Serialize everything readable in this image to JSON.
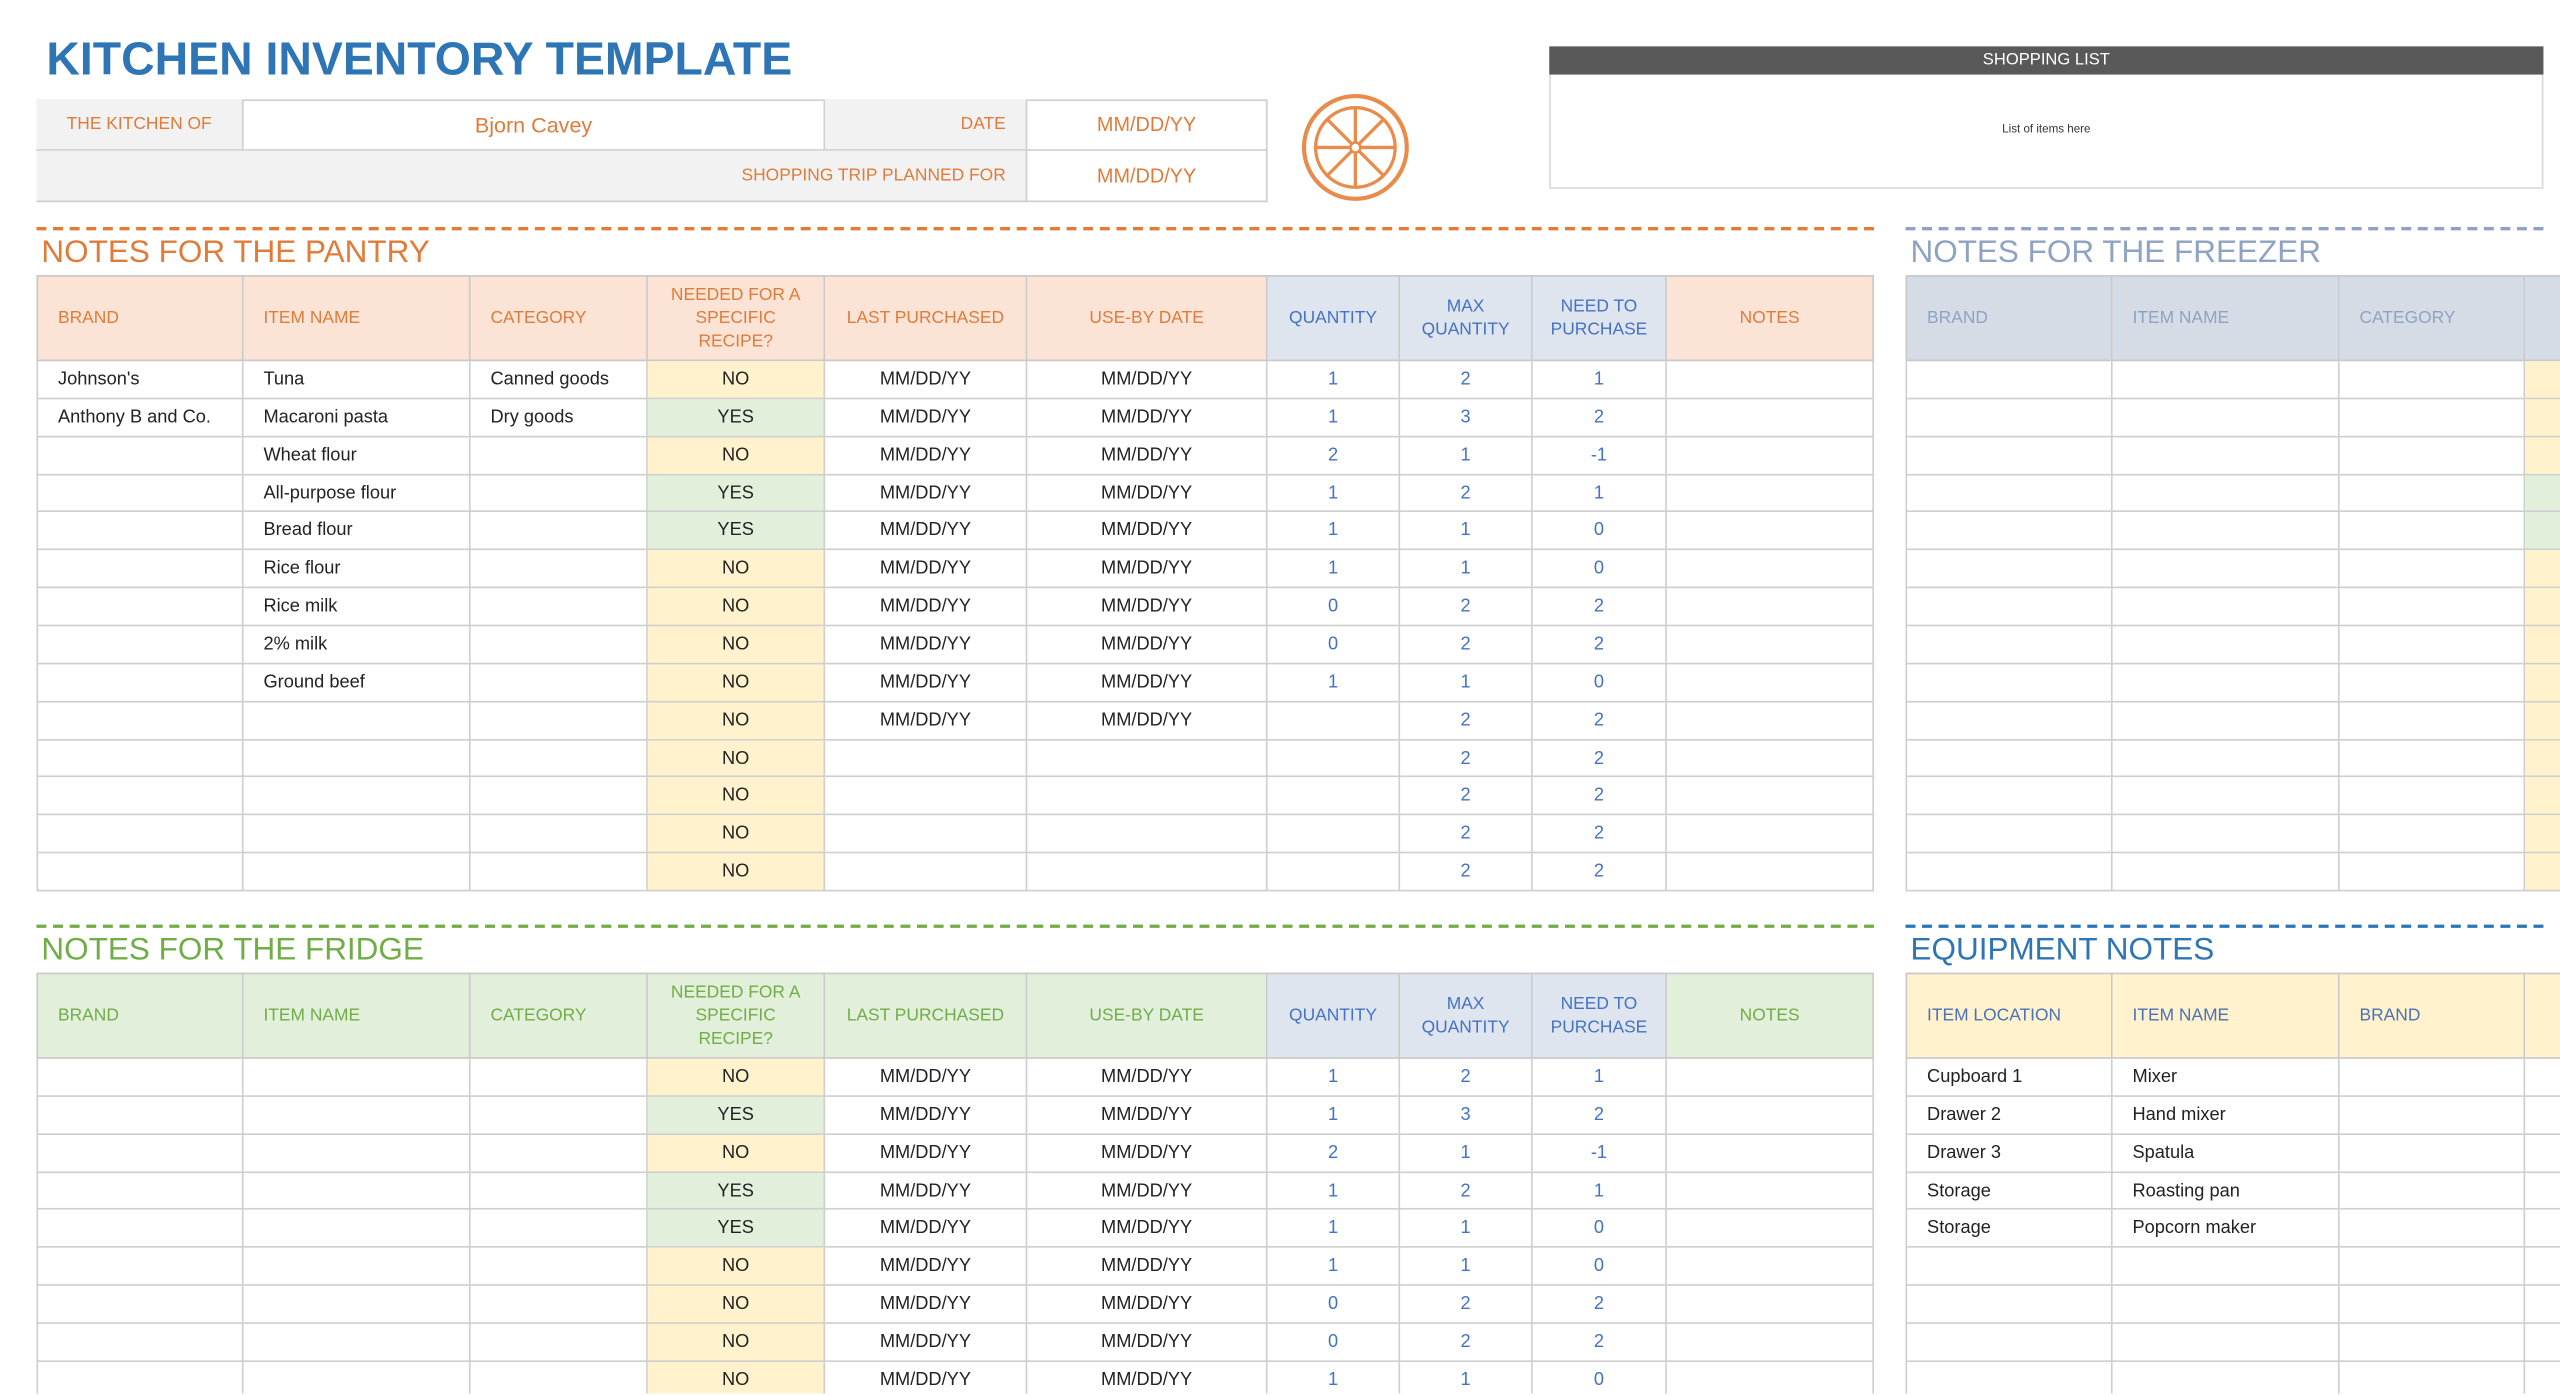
{
  "title": "KITCHEN INVENTORY TEMPLATE",
  "header": {
    "kitchen_of_label": "THE KITCHEN OF",
    "kitchen_of": "Bjorn Cavey",
    "date_label": "DATE",
    "date": "MM/DD/YY",
    "trip_label": "SHOPPING TRIP PLANNED FOR",
    "trip": "MM/DD/YY"
  },
  "shopping_list": {
    "title": "SHOPPING LIST",
    "placeholder": "List of items here"
  },
  "pantry": {
    "title": "NOTES FOR THE PANTRY",
    "columns": [
      "BRAND",
      "ITEM NAME",
      "CATEGORY",
      "NEEDED FOR A SPECIFIC RECIPE?",
      "LAST PURCHASED",
      "USE-BY DATE",
      "QUANTITY",
      "MAX QUANTITY",
      "NEED TO PURCHASE",
      "NOTES"
    ],
    "rows": [
      [
        "Johnson's",
        "Tuna",
        "Canned goods",
        "NO",
        "MM/DD/YY",
        "MM/DD/YY",
        1,
        2,
        1,
        null
      ],
      [
        "Anthony B and Co.",
        "Macaroni pasta",
        "Dry goods",
        "YES",
        "MM/DD/YY",
        "MM/DD/YY",
        1,
        3,
        2,
        null
      ],
      [
        null,
        "Wheat flour",
        null,
        "NO",
        "MM/DD/YY",
        "MM/DD/YY",
        2,
        1,
        -1,
        null
      ],
      [
        null,
        "All-purpose flour",
        null,
        "YES",
        "MM/DD/YY",
        "MM/DD/YY",
        1,
        2,
        1,
        null
      ],
      [
        null,
        "Bread flour",
        null,
        "YES",
        "MM/DD/YY",
        "MM/DD/YY",
        1,
        1,
        0,
        null
      ],
      [
        null,
        "Rice flour",
        null,
        "NO",
        "MM/DD/YY",
        "MM/DD/YY",
        1,
        1,
        0,
        null
      ],
      [
        null,
        "Rice milk",
        null,
        "NO",
        "MM/DD/YY",
        "MM/DD/YY",
        0,
        2,
        2,
        null
      ],
      [
        null,
        "2% milk",
        null,
        "NO",
        "MM/DD/YY",
        "MM/DD/YY",
        0,
        2,
        2,
        null
      ],
      [
        null,
        "Ground beef",
        null,
        "NO",
        "MM/DD/YY",
        "MM/DD/YY",
        1,
        1,
        0,
        null
      ],
      [
        null,
        null,
        null,
        "NO",
        "MM/DD/YY",
        "MM/DD/YY",
        null,
        2,
        2,
        null
      ],
      [
        null,
        null,
        null,
        "NO",
        null,
        null,
        null,
        2,
        2,
        null
      ],
      [
        null,
        null,
        null,
        "NO",
        null,
        null,
        null,
        2,
        2,
        null
      ],
      [
        null,
        null,
        null,
        "NO",
        null,
        null,
        null,
        2,
        2,
        null
      ],
      [
        null,
        null,
        null,
        "NO",
        null,
        null,
        null,
        2,
        2,
        null
      ]
    ]
  },
  "fridge": {
    "title": "NOTES FOR THE FRIDGE",
    "columns": [
      "BRAND",
      "ITEM NAME",
      "CATEGORY",
      "NEEDED FOR A SPECIFIC RECIPE?",
      "LAST PURCHASED",
      "USE-BY DATE",
      "QUANTITY",
      "MAX QUANTITY",
      "NEED TO PURCHASE",
      "NOTES"
    ],
    "rows": [
      [
        null,
        null,
        null,
        "NO",
        "MM/DD/YY",
        "MM/DD/YY",
        1,
        2,
        1,
        null
      ],
      [
        null,
        null,
        null,
        "YES",
        "MM/DD/YY",
        "MM/DD/YY",
        1,
        3,
        2,
        null
      ],
      [
        null,
        null,
        null,
        "NO",
        "MM/DD/YY",
        "MM/DD/YY",
        2,
        1,
        -1,
        null
      ],
      [
        null,
        null,
        null,
        "YES",
        "MM/DD/YY",
        "MM/DD/YY",
        1,
        2,
        1,
        null
      ],
      [
        null,
        null,
        null,
        "YES",
        "MM/DD/YY",
        "MM/DD/YY",
        1,
        1,
        0,
        null
      ],
      [
        null,
        null,
        null,
        "NO",
        "MM/DD/YY",
        "MM/DD/YY",
        1,
        1,
        0,
        null
      ],
      [
        null,
        null,
        null,
        "NO",
        "MM/DD/YY",
        "MM/DD/YY",
        0,
        2,
        2,
        null
      ],
      [
        null,
        null,
        null,
        "NO",
        "MM/DD/YY",
        "MM/DD/YY",
        0,
        2,
        2,
        null
      ],
      [
        null,
        null,
        null,
        "NO",
        "MM/DD/YY",
        "MM/DD/YY",
        1,
        1,
        0,
        null
      ]
    ]
  },
  "freezer": {
    "title": "NOTES FOR THE FREEZER",
    "columns": [
      "BRAND",
      "ITEM NAME",
      "CATEGORY"
    ]
  },
  "equipment": {
    "title": "EQUIPMENT NOTES",
    "columns": [
      "ITEM LOCATION",
      "ITEM NAME",
      "BRAND"
    ],
    "rows": [
      [
        "Cupboard 1",
        "Mixer"
      ],
      [
        "Drawer 2",
        "Hand mixer"
      ],
      [
        "Drawer 3",
        "Spatula"
      ],
      [
        "Storage",
        "Roasting pan"
      ],
      [
        "Storage",
        "Popcorn maker"
      ]
    ]
  }
}
